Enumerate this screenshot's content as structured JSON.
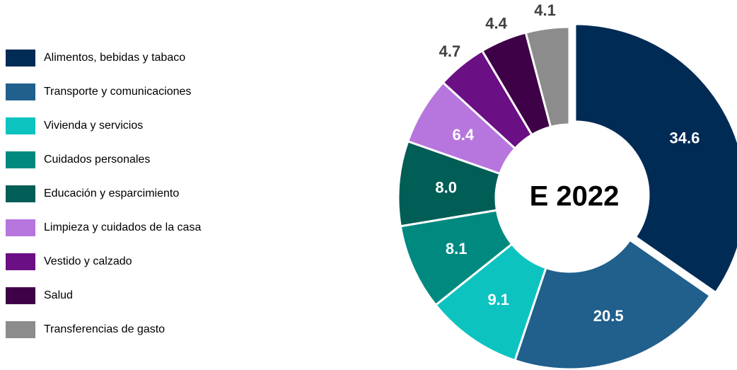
{
  "chart_data": {
    "type": "donut",
    "center_label": "E 2022",
    "categories": [
      "Alimentos, bebidas y tabaco",
      "Transporte y comunicaciones",
      "Vivienda y servicios",
      "Cuidados personales",
      "Educación y esparcimiento",
      "Limpieza y cuidados de la casa",
      "Vestido y calzado",
      "Salud",
      "Transferencias de gasto"
    ],
    "values": [
      34.6,
      20.5,
      9.1,
      8.1,
      8.0,
      6.4,
      4.7,
      4.4,
      4.1
    ],
    "value_labels": [
      "34.6",
      "20.5",
      "9.1",
      "8.1",
      "8.0",
      "6.4",
      "4.7",
      "4.4",
      "4.1"
    ],
    "colors": [
      "#002b55",
      "#215f8c",
      "#0cc3c0",
      "#00897f",
      "#005e56",
      "#b676de",
      "#6a0f84",
      "#3e0046",
      "#8c8c8c"
    ],
    "legend": "left"
  }
}
